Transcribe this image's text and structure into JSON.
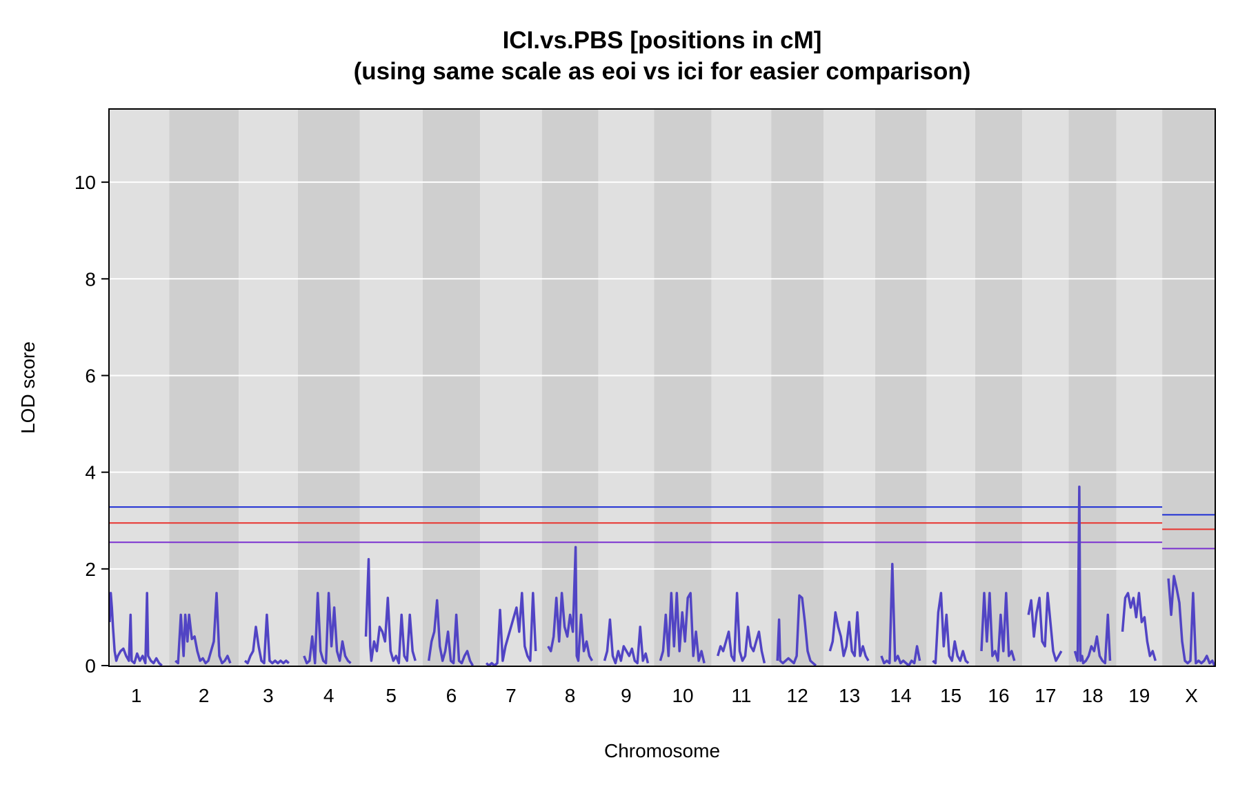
{
  "chart_data": {
    "type": "line",
    "title": "ICI.vs.PBS [positions in cM]",
    "subtitle": "(using same scale as eoi vs ici for easier comparison)",
    "xlabel": "Chromosome",
    "ylabel": "LOD score",
    "ylim": [
      0,
      11.5
    ],
    "yticks": [
      0,
      2,
      4,
      6,
      8,
      10
    ],
    "grid": true,
    "chromosomes": [
      "1",
      "2",
      "3",
      "4",
      "5",
      "6",
      "7",
      "8",
      "9",
      "10",
      "11",
      "12",
      "13",
      "14",
      "15",
      "16",
      "17",
      "18",
      "19",
      "X"
    ],
    "chromosome_lengths_cM": [
      97,
      104,
      85,
      90,
      92,
      82,
      90,
      80,
      79,
      82,
      86,
      73,
      71,
      71,
      66,
      63,
      62,
      64,
      61,
      84
    ],
    "series": [
      {
        "color": "#5144C4",
        "segments": [
          {
            "chr": "1",
            "pos": [
              0,
              2,
              4,
              6,
              9,
              12,
              15,
              20,
              25,
              30,
              35,
              38,
              40,
              45,
              50,
              55,
              60,
              65,
              68,
              70,
              75,
              80,
              85,
              90,
              95
            ],
            "lod": [
              0.9,
              1.5,
              1.2,
              0.8,
              0.3,
              0.1,
              0.2,
              0.3,
              0.35,
              0.2,
              0.1,
              1.05,
              0.1,
              0.05,
              0.25,
              0.1,
              0.2,
              0.05,
              1.5,
              0.2,
              0.1,
              0.05,
              0.15,
              0.05,
              0.0
            ]
          },
          {
            "chr": "2",
            "pos": [
              0,
              5,
              10,
              15,
              18,
              22,
              25,
              30,
              35,
              40,
              45,
              50,
              55,
              60,
              65,
              70,
              75,
              80,
              85,
              90,
              95,
              100
            ],
            "lod": [
              0.1,
              0.05,
              1.05,
              0.2,
              1.05,
              0.5,
              1.05,
              0.55,
              0.6,
              0.3,
              0.1,
              0.15,
              0.05,
              0.1,
              0.3,
              0.5,
              1.5,
              0.2,
              0.05,
              0.1,
              0.2,
              0.05
            ]
          },
          {
            "chr": "3",
            "pos": [
              0,
              5,
              10,
              15,
              20,
              25,
              30,
              35,
              40,
              45,
              50,
              55,
              60,
              65,
              70,
              75,
              80
            ],
            "lod": [
              0.1,
              0.05,
              0.2,
              0.3,
              0.8,
              0.4,
              0.1,
              0.05,
              1.05,
              0.1,
              0.05,
              0.1,
              0.05,
              0.1,
              0.05,
              0.1,
              0.05
            ]
          },
          {
            "chr": "4",
            "pos": [
              0,
              5,
              10,
              15,
              20,
              25,
              30,
              35,
              40,
              45,
              50,
              55,
              60,
              65,
              70,
              75,
              80,
              85
            ],
            "lod": [
              0.2,
              0.05,
              0.1,
              0.6,
              0.05,
              1.5,
              0.3,
              0.1,
              0.05,
              1.5,
              0.4,
              1.2,
              0.3,
              0.1,
              0.5,
              0.2,
              0.1,
              0.05
            ]
          },
          {
            "chr": "5",
            "pos": [
              0,
              5,
              8,
              10,
              15,
              20,
              25,
              30,
              35,
              40,
              45,
              50,
              55,
              60,
              65,
              70,
              75,
              80,
              85,
              90
            ],
            "lod": [
              0.6,
              2.2,
              0.4,
              0.1,
              0.5,
              0.3,
              0.8,
              0.7,
              0.5,
              1.4,
              0.3,
              0.1,
              0.2,
              0.05,
              1.05,
              0.2,
              0.1,
              1.05,
              0.3,
              0.1
            ]
          },
          {
            "chr": "6",
            "pos": [
              0,
              5,
              10,
              15,
              20,
              25,
              30,
              35,
              40,
              45,
              50,
              55,
              60,
              65,
              70,
              75,
              80
            ],
            "lod": [
              0.1,
              0.5,
              0.7,
              1.35,
              0.4,
              0.1,
              0.3,
              0.7,
              0.1,
              0.05,
              1.05,
              0.1,
              0.05,
              0.2,
              0.3,
              0.1,
              0.0
            ]
          },
          {
            "chr": "7",
            "pos": [
              0,
              5,
              10,
              15,
              20,
              25,
              30,
              35,
              40,
              45,
              50,
              55,
              60,
              65,
              70,
              75,
              80,
              85,
              90
            ],
            "lod": [
              0.05,
              0.0,
              0.05,
              0.0,
              0.05,
              1.15,
              0.1,
              0.4,
              0.6,
              0.8,
              1.0,
              1.2,
              0.7,
              1.5,
              0.4,
              0.2,
              0.1,
              1.5,
              0.3
            ]
          },
          {
            "chr": "8",
            "pos": [
              0,
              5,
              10,
              15,
              20,
              25,
              30,
              35,
              40,
              45,
              50,
              52,
              55,
              60,
              65,
              70,
              75,
              80
            ],
            "lod": [
              0.4,
              0.3,
              0.6,
              1.4,
              0.5,
              1.5,
              0.8,
              0.6,
              1.05,
              0.7,
              2.45,
              0.2,
              0.1,
              1.05,
              0.3,
              0.5,
              0.2,
              0.1
            ]
          },
          {
            "chr": "9",
            "pos": [
              0,
              5,
              10,
              15,
              20,
              25,
              30,
              35,
              40,
              45,
              50,
              55,
              60,
              65,
              70,
              75,
              79
            ],
            "lod": [
              0.1,
              0.3,
              0.95,
              0.2,
              0.05,
              0.3,
              0.1,
              0.4,
              0.3,
              0.2,
              0.35,
              0.1,
              0.05,
              0.8,
              0.1,
              0.25,
              0.05
            ]
          },
          {
            "chr": "10",
            "pos": [
              0,
              5,
              10,
              15,
              20,
              25,
              30,
              35,
              40,
              45,
              50,
              55,
              60,
              65,
              70,
              75,
              80
            ],
            "lod": [
              0.1,
              0.3,
              1.05,
              0.2,
              1.5,
              0.4,
              1.5,
              0.3,
              1.1,
              0.5,
              1.4,
              1.5,
              0.2,
              0.7,
              0.1,
              0.3,
              0.05
            ]
          },
          {
            "chr": "11",
            "pos": [
              0,
              5,
              10,
              15,
              20,
              25,
              30,
              35,
              40,
              45,
              50,
              55,
              60,
              65,
              70,
              75,
              80,
              85
            ],
            "lod": [
              0.2,
              0.4,
              0.3,
              0.5,
              0.7,
              0.2,
              0.1,
              1.5,
              0.3,
              0.1,
              0.2,
              0.8,
              0.4,
              0.3,
              0.5,
              0.7,
              0.3,
              0.05
            ]
          },
          {
            "chr": "12",
            "pos": [
              0,
              3,
              5,
              10,
              15,
              20,
              25,
              30,
              35,
              40,
              45,
              50,
              55,
              60,
              65,
              70
            ],
            "lod": [
              0.1,
              0.95,
              0.1,
              0.05,
              0.1,
              0.15,
              0.1,
              0.05,
              0.2,
              1.45,
              1.4,
              0.9,
              0.3,
              0.1,
              0.05,
              0.0
            ]
          },
          {
            "chr": "13",
            "pos": [
              0,
              5,
              10,
              15,
              20,
              25,
              30,
              35,
              40,
              45,
              50,
              55,
              60,
              65,
              70
            ],
            "lod": [
              0.3,
              0.5,
              1.1,
              0.8,
              0.6,
              0.2,
              0.4,
              0.9,
              0.3,
              0.2,
              1.1,
              0.2,
              0.4,
              0.2,
              0.1
            ]
          },
          {
            "chr": "14",
            "pos": [
              0,
              5,
              10,
              15,
              20,
              25,
              30,
              35,
              40,
              45,
              50,
              55,
              60,
              65,
              70
            ],
            "lod": [
              0.2,
              0.05,
              0.1,
              0.05,
              2.1,
              0.1,
              0.2,
              0.05,
              0.1,
              0.05,
              0.0,
              0.1,
              0.05,
              0.4,
              0.1
            ]
          },
          {
            "chr": "15",
            "pos": [
              0,
              5,
              10,
              15,
              20,
              25,
              30,
              35,
              40,
              45,
              50,
              55,
              60,
              65
            ],
            "lod": [
              0.1,
              0.05,
              1.1,
              1.5,
              0.4,
              1.05,
              0.2,
              0.1,
              0.5,
              0.2,
              0.1,
              0.3,
              0.1,
              0.05
            ]
          },
          {
            "chr": "16",
            "pos": [
              0,
              5,
              10,
              15,
              20,
              25,
              30,
              35,
              40,
              45,
              50,
              55,
              60
            ],
            "lod": [
              0.3,
              1.5,
              0.5,
              1.5,
              0.2,
              0.3,
              0.1,
              1.05,
              0.3,
              1.5,
              0.2,
              0.3,
              0.1
            ]
          },
          {
            "chr": "17",
            "pos": [
              0,
              5,
              10,
              15,
              20,
              25,
              30,
              35,
              40,
              45,
              50,
              55,
              60
            ],
            "lod": [
              1.05,
              1.35,
              0.6,
              1.1,
              1.4,
              0.5,
              0.4,
              1.5,
              0.9,
              0.3,
              0.1,
              0.2,
              0.3
            ]
          },
          {
            "chr": "18",
            "pos": [
              0,
              5,
              8,
              10,
              13,
              15,
              20,
              25,
              30,
              35,
              40,
              45,
              50,
              55,
              60,
              64
            ],
            "lod": [
              0.3,
              0.1,
              3.7,
              0.1,
              0.2,
              0.05,
              0.1,
              0.2,
              0.4,
              0.3,
              0.6,
              0.2,
              0.1,
              0.05,
              1.05,
              0.1
            ]
          },
          {
            "chr": "19",
            "pos": [
              0,
              5,
              10,
              15,
              20,
              25,
              30,
              35,
              40,
              45,
              50,
              55,
              60
            ],
            "lod": [
              0.7,
              1.4,
              1.5,
              1.2,
              1.4,
              1.0,
              1.5,
              0.9,
              1.0,
              0.5,
              0.2,
              0.3,
              0.1
            ]
          },
          {
            "chr": "X",
            "pos": [
              0,
              5,
              10,
              15,
              20,
              25,
              30,
              35,
              40,
              45,
              50,
              55,
              60,
              65,
              70,
              75,
              80,
              84
            ],
            "lod": [
              1.8,
              1.05,
              1.85,
              1.6,
              1.3,
              0.5,
              0.1,
              0.05,
              0.1,
              1.5,
              0.05,
              0.1,
              0.05,
              0.1,
              0.2,
              0.05,
              0.1,
              0.0
            ]
          }
        ]
      }
    ],
    "threshold_lines": {
      "autosome": [
        {
          "value": 3.28,
          "color": "#1E2ED4"
        },
        {
          "value": 2.95,
          "color": "#E8332E"
        },
        {
          "value": 2.55,
          "color": "#7A30D0"
        }
      ],
      "x": [
        {
          "value": 3.12,
          "color": "#1E2ED4"
        },
        {
          "value": 2.82,
          "color": "#E8332E"
        },
        {
          "value": 2.42,
          "color": "#7A30D0"
        }
      ]
    },
    "colors": {
      "band_light": "#E0E0E0",
      "band_dark": "#CFCFCF",
      "grid": "#FFFFFF",
      "frame": "#000000"
    }
  }
}
